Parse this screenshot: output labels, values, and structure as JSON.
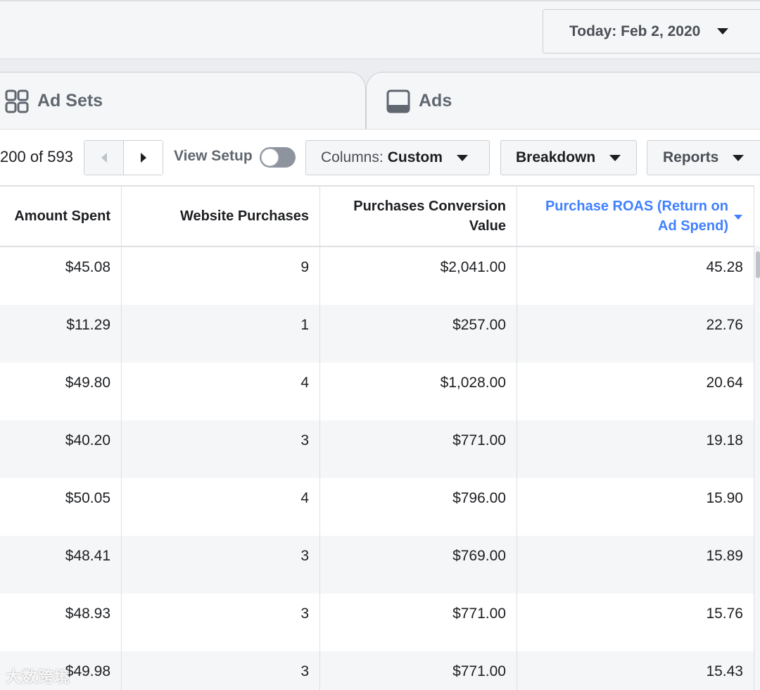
{
  "header": {
    "date_label": "Today: Feb 2, 2020"
  },
  "tabs": [
    {
      "label": "Ad Sets",
      "icon": "grid-icon"
    },
    {
      "label": "Ads",
      "icon": "ad-preview-icon"
    }
  ],
  "toolbar": {
    "pagination_text": "200 of 593",
    "view_setup_label": "View Setup",
    "view_setup_on": false,
    "columns_prefix": "Columns:",
    "columns_value": "Custom",
    "breakdown_label": "Breakdown",
    "reports_label": "Reports"
  },
  "table": {
    "columns": [
      "Amount Spent",
      "Website Purchases",
      "Purchases Conversion Value",
      "Purchase ROAS (Return on Ad Spend)"
    ],
    "sorted_column": "Purchase ROAS (Return on Ad Spend)",
    "rows": [
      [
        "$45.08",
        "9",
        "$2,041.00",
        "45.28"
      ],
      [
        "$11.29",
        "1",
        "$257.00",
        "22.76"
      ],
      [
        "$49.80",
        "4",
        "$1,028.00",
        "20.64"
      ],
      [
        "$40.20",
        "3",
        "$771.00",
        "19.18"
      ],
      [
        "$50.05",
        "4",
        "$796.00",
        "15.90"
      ],
      [
        "$48.41",
        "3",
        "$769.00",
        "15.89"
      ],
      [
        "$48.93",
        "3",
        "$771.00",
        "15.76"
      ],
      [
        "$49.98",
        "3",
        "$771.00",
        "15.43"
      ]
    ]
  },
  "watermark": "大数跨境",
  "colors": {
    "accent_blue": "#4080ff",
    "border": "#dddfe2",
    "row_alt": "#f5f6f7"
  }
}
